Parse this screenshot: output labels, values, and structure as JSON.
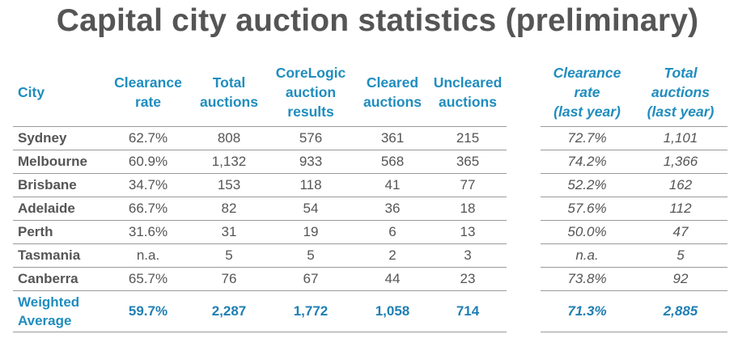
{
  "title": "Capital city auction statistics (preliminary)",
  "headers": {
    "city": "City",
    "clearance_rate": [
      "Clearance",
      "rate"
    ],
    "total_auctions": [
      "Total",
      "auctions"
    ],
    "corelogic": [
      "CoreLogic",
      "auction",
      "results"
    ],
    "cleared": [
      "Cleared",
      "auctions"
    ],
    "uncleared": [
      "Uncleared",
      "auctions"
    ],
    "ly_rate": [
      "Clearance",
      "rate",
      "(last year)"
    ],
    "ly_total": [
      "Total",
      "auctions",
      "(last year)"
    ]
  },
  "rows": [
    {
      "city": "Sydney",
      "clearance_rate": "62.7%",
      "total_auctions": "808",
      "corelogic": "576",
      "cleared": "361",
      "uncleared": "215",
      "ly_rate": "72.7%",
      "ly_total": "1,101"
    },
    {
      "city": "Melbourne",
      "clearance_rate": "60.9%",
      "total_auctions": "1,132",
      "corelogic": "933",
      "cleared": "568",
      "uncleared": "365",
      "ly_rate": "74.2%",
      "ly_total": "1,366"
    },
    {
      "city": "Brisbane",
      "clearance_rate": "34.7%",
      "total_auctions": "153",
      "corelogic": "118",
      "cleared": "41",
      "uncleared": "77",
      "ly_rate": "52.2%",
      "ly_total": "162"
    },
    {
      "city": "Adelaide",
      "clearance_rate": "66.7%",
      "total_auctions": "82",
      "corelogic": "54",
      "cleared": "36",
      "uncleared": "18",
      "ly_rate": "57.6%",
      "ly_total": "112"
    },
    {
      "city": "Perth",
      "clearance_rate": "31.6%",
      "total_auctions": "31",
      "corelogic": "19",
      "cleared": "6",
      "uncleared": "13",
      "ly_rate": "50.0%",
      "ly_total": "47"
    },
    {
      "city": "Tasmania",
      "clearance_rate": "n.a.",
      "total_auctions": "5",
      "corelogic": "5",
      "cleared": "2",
      "uncleared": "3",
      "ly_rate": "n.a.",
      "ly_total": "5"
    },
    {
      "city": "Canberra",
      "clearance_rate": "65.7%",
      "total_auctions": "76",
      "corelogic": "67",
      "cleared": "44",
      "uncleared": "23",
      "ly_rate": "73.8%",
      "ly_total": "92"
    }
  ],
  "weighted": {
    "city": [
      "Weighted",
      "Average"
    ],
    "clearance_rate": "59.7%",
    "total_auctions": "2,287",
    "corelogic": "1,772",
    "cleared": "1,058",
    "uncleared": "714",
    "ly_rate": "71.3%",
    "ly_total": "2,885"
  },
  "colors": {
    "header_blue": "#1f8dbf",
    "text_gray": "#555555",
    "rule_gray": "#9a9a9a"
  }
}
